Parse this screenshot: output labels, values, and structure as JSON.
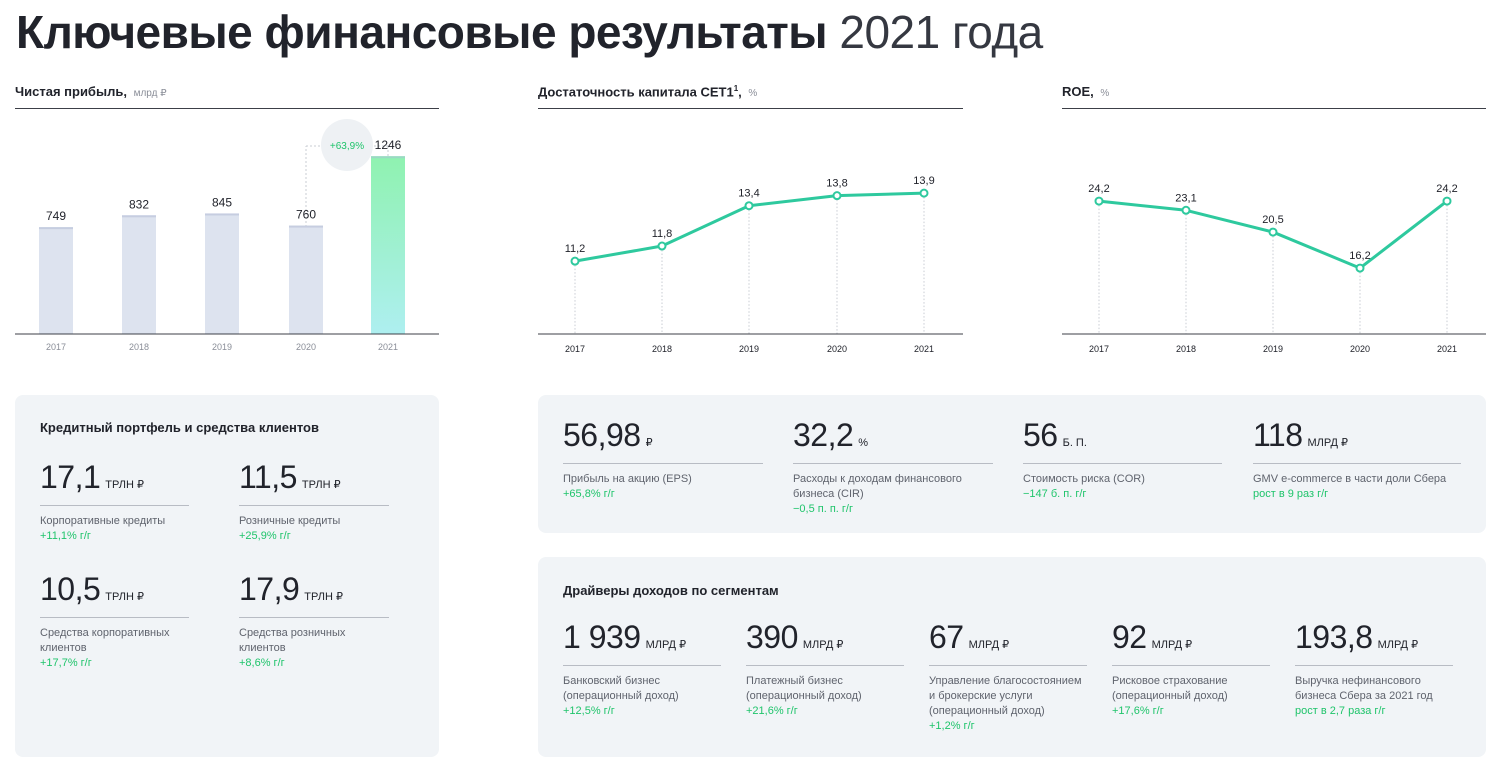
{
  "title": {
    "bold": "Ключевые финансовые результаты",
    "light": "2021 года"
  },
  "charts": {
    "profit": {
      "label": "Чистая прибыль,",
      "unit": "млрд ₽",
      "growth_badge": "+63,9%"
    },
    "cet1": {
      "label": "Достаточность капитала CET1",
      "sup": "1",
      "comma": ",",
      "unit": "%"
    },
    "roe": {
      "label": "ROE,",
      "unit": "%"
    }
  },
  "chart_data": [
    {
      "type": "bar",
      "title": "Чистая прибыль, млрд ₽",
      "categories": [
        "2017",
        "2018",
        "2019",
        "2020",
        "2021"
      ],
      "values": [
        749,
        832,
        845,
        760,
        1246
      ],
      "value_labels": [
        "749",
        "832",
        "845",
        "760",
        "1246"
      ],
      "annotation": "+63,9%",
      "ylim": [
        0,
        1500
      ],
      "grid": false,
      "colors": {
        "bar": "#dde3ef",
        "highlight_top": "#8ff2b0",
        "highlight_bottom": "#aeeff0"
      }
    },
    {
      "type": "line",
      "title": "Достаточность капитала CET1, %",
      "x": [
        "2017",
        "2018",
        "2019",
        "2020",
        "2021"
      ],
      "values": [
        11.2,
        11.8,
        13.4,
        13.8,
        13.9
      ],
      "value_labels": [
        "11,2",
        "11,8",
        "13,4",
        "13,8",
        "13,9"
      ],
      "ylim": [
        9.5,
        14.5
      ],
      "grid": false,
      "color": "#2ec99e"
    },
    {
      "type": "line",
      "title": "ROE, %",
      "x": [
        "2017",
        "2018",
        "2019",
        "2020",
        "2021"
      ],
      "values": [
        24.2,
        23.1,
        20.5,
        16.2,
        24.2
      ],
      "value_labels": [
        "24,2",
        "23,1",
        "20,5",
        "16,2",
        "24,2"
      ],
      "ylim": [
        10,
        26
      ],
      "grid": false,
      "color": "#2ec99e"
    }
  ],
  "loans": {
    "title": "Кредитный портфель и средства клиентов",
    "items": [
      {
        "num": "17,1",
        "unit": "ТРЛН ₽",
        "desc": "Корпоративные кредиты",
        "chg": "+11,1% г/г"
      },
      {
        "num": "11,5",
        "unit": "ТРЛН ₽",
        "desc": "Розничные кредиты",
        "chg": "+25,9% г/г"
      },
      {
        "num": "10,5",
        "unit": "ТРЛН ₽",
        "desc": "Средства корпоративных клиентов",
        "chg": "+17,7% г/г"
      },
      {
        "num": "17,9",
        "unit": "ТРЛН ₽",
        "desc": "Средства розничных клиентов",
        "chg": "+8,6% г/г"
      }
    ]
  },
  "kpis": {
    "items": [
      {
        "num": "56,98",
        "unit": "₽",
        "desc": "Прибыль на акцию (EPS)",
        "chg": "+65,8% г/г"
      },
      {
        "num": "32,2",
        "unit": "%",
        "desc": "Расходы к доходам финансового бизнеса (CIR)",
        "chg": "−0,5 п. п. г/г"
      },
      {
        "num": "56",
        "unit": "Б. П.",
        "desc": "Стоимость риска (COR)",
        "chg": "−147 б. п. г/г"
      },
      {
        "num": "118",
        "unit": "МЛРД ₽",
        "desc": "GMV e-commerce в части доли Сбера",
        "chg": "рост в 9 раз г/г"
      }
    ]
  },
  "segments": {
    "title": "Драйверы доходов по сегментам",
    "items": [
      {
        "num": "1 939",
        "unit": "МЛРД ₽",
        "desc": "Банковский бизнес (операционный доход)",
        "chg": "+12,5% г/г"
      },
      {
        "num": "390",
        "unit": "МЛРД ₽",
        "desc": "Платежный бизнес (операционный доход)",
        "chg": "+21,6% г/г"
      },
      {
        "num": "67",
        "unit": "МЛРД ₽",
        "desc": "Управление благосостоянием и брокерские услуги (операционный доход)",
        "chg": "+1,2% г/г"
      },
      {
        "num": "92",
        "unit": "МЛРД ₽",
        "desc": "Рисковое страхование (операционный доход)",
        "chg": "+17,6% г/г"
      },
      {
        "num": "193,8",
        "unit": "МЛРД ₽",
        "desc": "Выручка нефинансового бизнеса Сбера за 2021 год",
        "chg": "рост в 2,7 раза г/г"
      }
    ]
  }
}
